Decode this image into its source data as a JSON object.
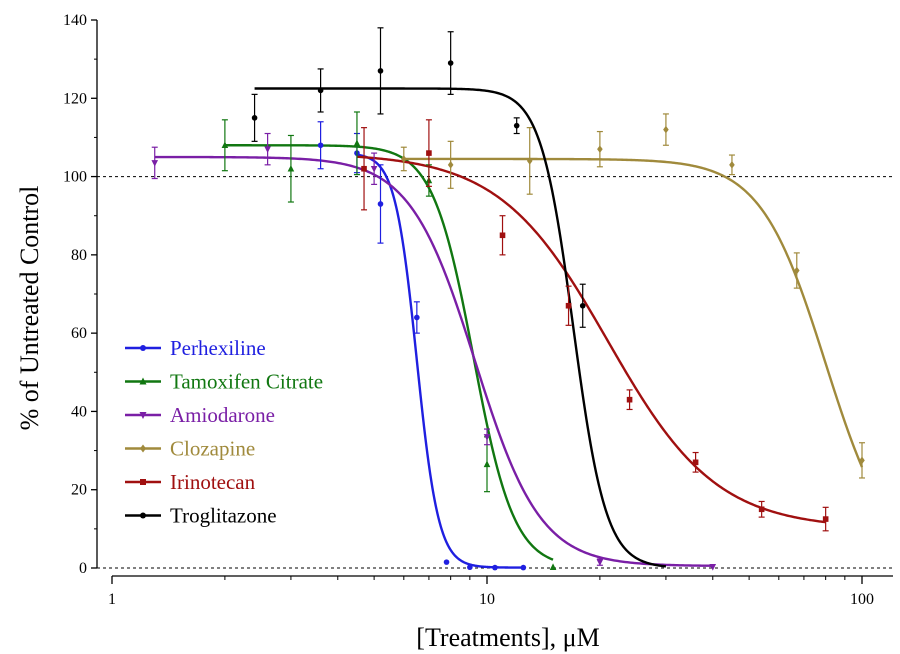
{
  "chart_data": {
    "type": "scatter",
    "xlabel": "[Treatments], μM",
    "ylabel": "% of Untreated Control",
    "xscale": "log",
    "xlim": [
      1,
      110
    ],
    "ylim": [
      0,
      140
    ],
    "xticks": [
      1,
      10,
      100
    ],
    "yticks": [
      0,
      20,
      40,
      60,
      80,
      100,
      120,
      140
    ],
    "reference_lines": [
      100,
      0
    ],
    "legend_position": "center-left",
    "grid": false,
    "series": [
      {
        "name": "Perhexiline",
        "color": "#1f1fe0",
        "marker": "circle",
        "points": [
          {
            "x": 3.6,
            "y": 108,
            "err": 6
          },
          {
            "x": 4.5,
            "y": 106,
            "err": 5
          },
          {
            "x": 5.2,
            "y": 93,
            "err": 10
          },
          {
            "x": 6.5,
            "y": 64,
            "err": 4
          },
          {
            "x": 7.8,
            "y": 1.5,
            "err": 0.5
          },
          {
            "x": 9.0,
            "y": 0.2,
            "err": 0.3
          },
          {
            "x": 10.5,
            "y": 0.1,
            "err": 0.3
          },
          {
            "x": 12.5,
            "y": 0.1,
            "err": 0.3
          }
        ],
        "fit": {
          "top": 106,
          "bottom": 0.1,
          "ec50": 6.5,
          "hill": 15
        },
        "fit_range": [
          4.5,
          12.5
        ]
      },
      {
        "name": "Tamoxifen Citrate",
        "color": "#117711",
        "marker": "triangle-up",
        "points": [
          {
            "x": 2.0,
            "y": 108,
            "err": 6.5
          },
          {
            "x": 3.0,
            "y": 102,
            "err": 8.5
          },
          {
            "x": 4.5,
            "y": 108.5,
            "err": 8
          },
          {
            "x": 7.0,
            "y": 99,
            "err": 4
          },
          {
            "x": 10.0,
            "y": 26.5,
            "err": 7
          },
          {
            "x": 15.0,
            "y": 0.2,
            "err": 0.3
          }
        ],
        "fit": {
          "top": 108,
          "bottom": 0,
          "ec50": 9.2,
          "hill": 8
        },
        "fit_range": [
          2.0,
          15.0
        ]
      },
      {
        "name": "Amiodarone",
        "color": "#7a1fa6",
        "marker": "triangle-down",
        "points": [
          {
            "x": 1.3,
            "y": 103.5,
            "err": 4
          },
          {
            "x": 2.6,
            "y": 107,
            "err": 4
          },
          {
            "x": 5.0,
            "y": 102,
            "err": 4
          },
          {
            "x": 10.0,
            "y": 33.5,
            "err": 2
          },
          {
            "x": 20.0,
            "y": 1.5,
            "err": 0.8
          },
          {
            "x": 40.0,
            "y": 0.3,
            "err": 0.5
          }
        ],
        "fit": {
          "top": 105,
          "bottom": 0.5,
          "ec50": 9.3,
          "hill": 5
        },
        "fit_range": [
          1.3,
          40.0
        ]
      },
      {
        "name": "Clozapine",
        "color": "#a08a3c",
        "marker": "diamond",
        "points": [
          {
            "x": 6.0,
            "y": 104.5,
            "err": 3
          },
          {
            "x": 8.0,
            "y": 103,
            "err": 6
          },
          {
            "x": 13.0,
            "y": 104,
            "err": 8.5
          },
          {
            "x": 20.0,
            "y": 107,
            "err": 4.5
          },
          {
            "x": 30.0,
            "y": 112,
            "err": 4
          },
          {
            "x": 45.0,
            "y": 103,
            "err": 2.5
          },
          {
            "x": 67.0,
            "y": 76,
            "err": 4.5
          },
          {
            "x": 100.0,
            "y": 27.5,
            "err": 4.5
          }
        ],
        "fit": {
          "top": 104.5,
          "bottom": 0,
          "ec50": 80,
          "hill": 5
        },
        "fit_range": [
          6.0,
          100.0
        ]
      },
      {
        "name": "Irinotecan",
        "color": "#a01010",
        "marker": "square",
        "points": [
          {
            "x": 4.7,
            "y": 102,
            "err": 10.5
          },
          {
            "x": 7.0,
            "y": 106,
            "err": 8.5
          },
          {
            "x": 11.0,
            "y": 85,
            "err": 5
          },
          {
            "x": 16.5,
            "y": 67,
            "err": 5
          },
          {
            "x": 24.0,
            "y": 43,
            "err": 2.5
          },
          {
            "x": 36.0,
            "y": 27,
            "err": 2.5
          },
          {
            "x": 54.0,
            "y": 15,
            "err": 2
          },
          {
            "x": 80.0,
            "y": 12.5,
            "err": 3
          }
        ],
        "fit": {
          "top": 106,
          "bottom": 10,
          "ec50": 21,
          "hill": 3
        },
        "fit_range": [
          4.5,
          80.0
        ]
      },
      {
        "name": "Troglitazone",
        "color": "#000000",
        "marker": "circle",
        "points": [
          {
            "x": 2.4,
            "y": 115,
            "err": 6
          },
          {
            "x": 3.6,
            "y": 122,
            "err": 5.5
          },
          {
            "x": 5.2,
            "y": 127,
            "err": 11
          },
          {
            "x": 8.0,
            "y": 129,
            "err": 8
          },
          {
            "x": 12.0,
            "y": 113,
            "err": 2
          },
          {
            "x": 18.0,
            "y": 67,
            "err": 5.5
          }
        ],
        "fit": {
          "top": 122.5,
          "bottom": 0,
          "ec50": 17,
          "hill": 10
        },
        "fit_range": [
          2.4,
          30.0
        ]
      }
    ]
  }
}
